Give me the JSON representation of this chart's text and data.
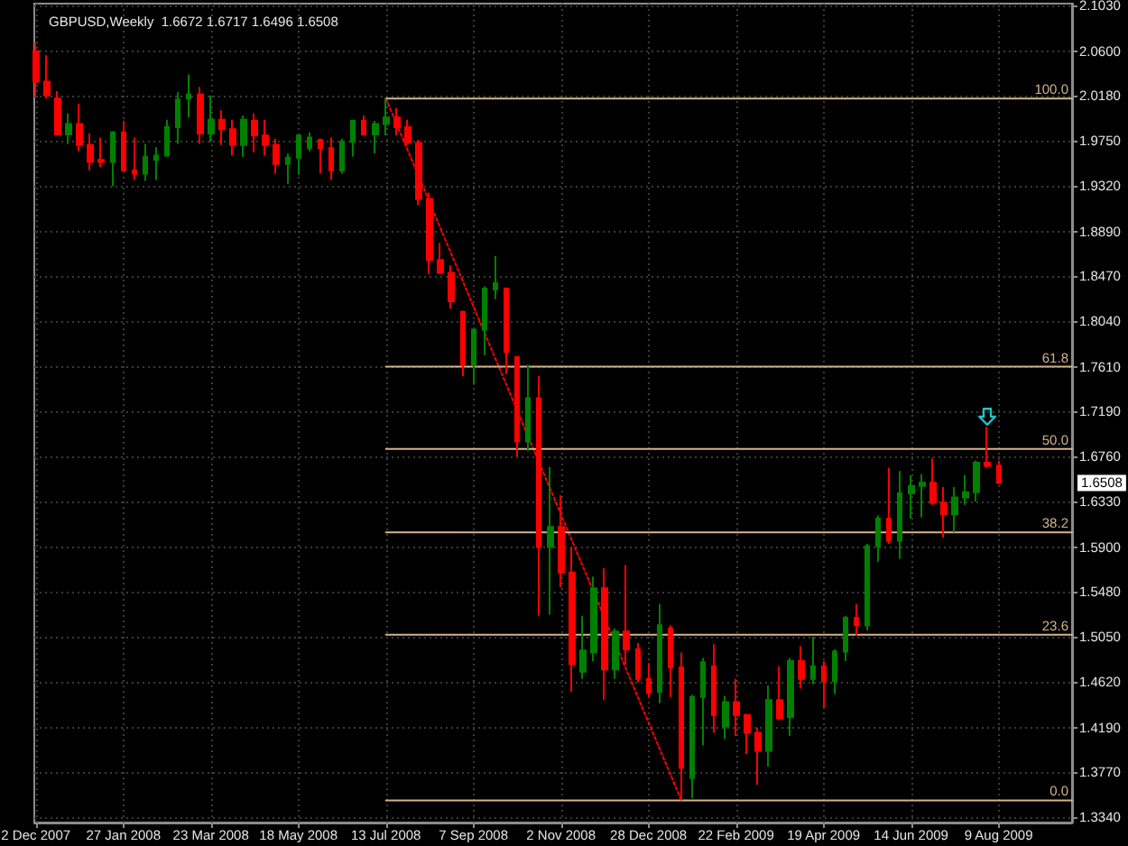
{
  "chart_data": {
    "type": "candlestick",
    "title": "GBPUSD,Weekly  1.6672 1.6717 1.6496 1.6508",
    "x": [
      "2007-12-02",
      "2007-12-09",
      "2007-12-16",
      "2007-12-23",
      "2007-12-30",
      "2008-01-06",
      "2008-01-13",
      "2008-01-20",
      "2008-01-27",
      "2008-02-03",
      "2008-02-10",
      "2008-02-17",
      "2008-02-24",
      "2008-03-02",
      "2008-03-09",
      "2008-03-16",
      "2008-03-23",
      "2008-03-30",
      "2008-04-06",
      "2008-04-13",
      "2008-04-20",
      "2008-04-27",
      "2008-05-04",
      "2008-05-11",
      "2008-05-18",
      "2008-05-25",
      "2008-06-01",
      "2008-06-08",
      "2008-06-15",
      "2008-06-22",
      "2008-06-29",
      "2008-07-06",
      "2008-07-13",
      "2008-07-20",
      "2008-07-27",
      "2008-08-03",
      "2008-08-10",
      "2008-08-17",
      "2008-08-24",
      "2008-08-31",
      "2008-09-07",
      "2008-09-14",
      "2008-09-21",
      "2008-09-28",
      "2008-10-05",
      "2008-10-12",
      "2008-10-19",
      "2008-10-26",
      "2008-11-02",
      "2008-11-09",
      "2008-11-16",
      "2008-11-23",
      "2008-11-30",
      "2008-12-07",
      "2008-12-14",
      "2008-12-21",
      "2008-12-28",
      "2009-01-04",
      "2009-01-11",
      "2009-01-18",
      "2009-01-25",
      "2009-02-01",
      "2009-02-08",
      "2009-02-15",
      "2009-02-22",
      "2009-03-01",
      "2009-03-08",
      "2009-03-15",
      "2009-03-22",
      "2009-03-29",
      "2009-04-05",
      "2009-04-12",
      "2009-04-19",
      "2009-04-26",
      "2009-05-03",
      "2009-05-10",
      "2009-05-17",
      "2009-05-24",
      "2009-05-31",
      "2009-06-07",
      "2009-06-14",
      "2009-06-21",
      "2009-06-28",
      "2009-07-05",
      "2009-07-12",
      "2009-07-19",
      "2009-07-26",
      "2009-08-02",
      "2009-08-09"
    ],
    "xlim": [
      "2007-12-01",
      "2009-09-25"
    ],
    "xticks": [
      {
        "value": "2007-12-02",
        "label": "2 Dec 2007"
      },
      {
        "value": "2008-01-27",
        "label": "27 Jan 2008"
      },
      {
        "value": "2008-03-23",
        "label": "23 Mar 2008"
      },
      {
        "value": "2008-05-18",
        "label": "18 May 2008"
      },
      {
        "value": "2008-07-13",
        "label": "13 Jul 2008"
      },
      {
        "value": "2008-09-07",
        "label": "7 Sep 2008"
      },
      {
        "value": "2008-11-02",
        "label": "2 Nov 2008"
      },
      {
        "value": "2008-12-28",
        "label": "28 Dec 2008"
      },
      {
        "value": "2009-02-22",
        "label": "22 Feb 2009"
      },
      {
        "value": "2009-04-19",
        "label": "19 Apr 2009"
      },
      {
        "value": "2009-06-14",
        "label": "14 Jun 2009"
      },
      {
        "value": "2009-08-09",
        "label": "9 Aug 2009"
      }
    ],
    "ylim": [
      1.329,
      2.105
    ],
    "yticks": [
      {
        "value": 1.334,
        "label": "1.3340"
      },
      {
        "value": 1.377,
        "label": "1.3770"
      },
      {
        "value": 1.419,
        "label": "1.4190"
      },
      {
        "value": 1.462,
        "label": "1.4620"
      },
      {
        "value": 1.505,
        "label": "1.5050"
      },
      {
        "value": 1.548,
        "label": "1.5480"
      },
      {
        "value": 1.59,
        "label": "1.5900"
      },
      {
        "value": 1.633,
        "label": "1.6330"
      },
      {
        "value": 1.676,
        "label": "1.6760"
      },
      {
        "value": 1.719,
        "label": "1.7190"
      },
      {
        "value": 1.761,
        "label": "1.7610"
      },
      {
        "value": 1.804,
        "label": "1.8040"
      },
      {
        "value": 1.847,
        "label": "1.8470"
      },
      {
        "value": 1.889,
        "label": "1.8890"
      },
      {
        "value": 1.932,
        "label": "1.9320"
      },
      {
        "value": 1.975,
        "label": "1.9750"
      },
      {
        "value": 2.018,
        "label": "2.0180"
      },
      {
        "value": 2.06,
        "label": "2.0600"
      },
      {
        "value": 2.103,
        "label": "2.1030"
      }
    ],
    "grid": true,
    "series": [
      {
        "ohlc": [
          [
            2.06,
            2.068,
            2.017,
            2.031
          ],
          [
            2.031,
            2.056,
            2.015,
            2.018
          ],
          [
            2.015,
            2.022,
            1.98,
            1.981
          ],
          [
            1.981,
            2.001,
            1.972,
            1.991
          ],
          [
            1.991,
            2.01,
            1.965,
            1.971
          ],
          [
            1.971,
            1.982,
            1.947,
            1.955
          ],
          [
            1.957,
            1.978,
            1.95,
            1.955
          ],
          [
            1.955,
            1.984,
            1.932,
            1.983
          ],
          [
            1.983,
            1.994,
            1.946,
            1.947
          ],
          [
            1.947,
            1.978,
            1.938,
            1.944
          ],
          [
            1.944,
            1.972,
            1.937,
            1.96
          ],
          [
            1.957,
            1.969,
            1.938,
            1.961
          ],
          [
            1.961,
            1.995,
            1.96,
            1.988
          ],
          [
            1.988,
            2.021,
            1.972,
            2.014
          ],
          [
            2.015,
            2.038,
            1.997,
            2.019
          ],
          [
            2.019,
            2.026,
            1.972,
            1.982
          ],
          [
            1.982,
            2.018,
            1.974,
            1.995
          ],
          [
            1.995,
            2.004,
            1.971,
            1.986
          ],
          [
            1.986,
            1.995,
            1.961,
            1.971
          ],
          [
            1.971,
            1.999,
            1.96,
            1.995
          ],
          [
            1.994,
            2.001,
            1.964,
            1.98
          ],
          [
            1.98,
            1.995,
            1.961,
            1.971
          ],
          [
            1.971,
            1.977,
            1.944,
            1.953
          ],
          [
            1.953,
            1.963,
            1.934,
            1.959
          ],
          [
            1.959,
            1.981,
            1.943,
            1.98
          ],
          [
            1.968,
            1.983,
            1.965,
            1.978
          ],
          [
            1.976,
            1.977,
            1.944,
            1.968
          ],
          [
            1.968,
            1.978,
            1.938,
            1.947
          ],
          [
            1.947,
            1.977,
            1.944,
            1.974
          ],
          [
            1.974,
            1.995,
            1.96,
            1.994
          ],
          [
            1.994,
            1.999,
            1.98,
            1.981
          ],
          [
            1.981,
            1.994,
            1.963,
            1.991
          ],
          [
            1.991,
            2.015,
            1.98,
            1.997
          ],
          [
            1.997,
            2.006,
            1.98,
            1.988
          ],
          [
            1.988,
            1.995,
            1.971,
            1.973
          ],
          [
            1.973,
            1.976,
            1.914,
            1.92
          ],
          [
            1.92,
            1.926,
            1.849,
            1.862
          ],
          [
            1.862,
            1.878,
            1.849,
            1.85
          ],
          [
            1.85,
            1.857,
            1.816,
            1.823
          ],
          [
            1.813,
            1.814,
            1.752,
            1.763
          ],
          [
            1.763,
            1.798,
            1.744,
            1.796
          ],
          [
            1.796,
            1.837,
            1.772,
            1.835
          ],
          [
            1.834,
            1.866,
            1.825,
            1.84
          ],
          [
            1.835,
            1.836,
            1.754,
            1.775
          ],
          [
            1.77,
            1.771,
            1.676,
            1.69
          ],
          [
            1.69,
            1.763,
            1.681,
            1.731
          ],
          [
            1.731,
            1.752,
            1.525,
            1.59
          ],
          [
            1.59,
            1.666,
            1.526,
            1.609
          ],
          [
            1.609,
            1.639,
            1.552,
            1.566
          ],
          [
            1.566,
            1.59,
            1.453,
            1.479
          ],
          [
            1.472,
            1.525,
            1.465,
            1.492
          ],
          [
            1.49,
            1.562,
            1.482,
            1.551
          ],
          [
            1.551,
            1.57,
            1.445,
            1.474
          ],
          [
            1.474,
            1.513,
            1.465,
            1.51
          ],
          [
            1.51,
            1.573,
            1.479,
            1.493
          ],
          [
            1.493,
            1.499,
            1.462,
            1.465
          ],
          [
            1.465,
            1.48,
            1.447,
            1.452
          ],
          [
            1.453,
            1.536,
            1.442,
            1.516
          ],
          [
            1.513,
            1.516,
            1.448,
            1.476
          ],
          [
            1.476,
            1.49,
            1.35,
            1.381
          ],
          [
            1.371,
            1.45,
            1.352,
            1.448
          ],
          [
            1.448,
            1.485,
            1.402,
            1.481
          ],
          [
            1.477,
            1.498,
            1.414,
            1.431
          ],
          [
            1.42,
            1.449,
            1.408,
            1.443
          ],
          [
            1.443,
            1.465,
            1.411,
            1.431
          ],
          [
            1.431,
            1.432,
            1.394,
            1.414
          ],
          [
            1.414,
            1.419,
            1.365,
            1.397
          ],
          [
            1.397,
            1.459,
            1.382,
            1.445
          ],
          [
            1.445,
            1.477,
            1.426,
            1.428
          ],
          [
            1.429,
            1.485,
            1.411,
            1.482
          ],
          [
            1.482,
            1.496,
            1.456,
            1.465
          ],
          [
            1.465,
            1.505,
            1.46,
            1.477
          ],
          [
            1.477,
            1.482,
            1.438,
            1.463
          ],
          [
            1.463,
            1.493,
            1.451,
            1.491
          ],
          [
            1.491,
            1.525,
            1.482,
            1.523
          ],
          [
            1.523,
            1.536,
            1.506,
            1.516
          ],
          [
            1.516,
            1.593,
            1.511,
            1.591
          ],
          [
            1.591,
            1.62,
            1.576,
            1.617
          ],
          [
            1.617,
            1.665,
            1.593,
            1.596
          ],
          [
            1.596,
            1.662,
            1.579,
            1.641
          ],
          [
            1.641,
            1.658,
            1.617,
            1.648
          ],
          [
            1.648,
            1.659,
            1.618,
            1.651
          ],
          [
            1.651,
            1.674,
            1.63,
            1.632
          ],
          [
            1.632,
            1.647,
            1.599,
            1.621
          ],
          [
            1.621,
            1.647,
            1.604,
            1.637
          ],
          [
            1.637,
            1.658,
            1.63,
            1.642
          ],
          [
            1.642,
            1.672,
            1.633,
            1.67
          ],
          [
            1.67,
            1.704,
            1.665,
            1.667
          ],
          [
            1.6672,
            1.6717,
            1.6496,
            1.6508
          ]
        ],
        "colors": [
          "#ff0000",
          "#ff0000",
          "#ff0000",
          "#008000",
          "#ff0000",
          "#ff0000",
          "#ff0000",
          "#008000",
          "#ff0000",
          "#ff0000",
          "#008000",
          "#008000",
          "#008000",
          "#008000",
          "#008000",
          "#ff0000",
          "#008000",
          "#ff0000",
          "#ff0000",
          "#008000",
          "#ff0000",
          "#ff0000",
          "#ff0000",
          "#008000",
          "#008000",
          "#008000",
          "#ff0000",
          "#ff0000",
          "#008000",
          "#008000",
          "#ff0000",
          "#008000",
          "#008000",
          "#ff0000",
          "#ff0000",
          "#ff0000",
          "#ff0000",
          "#ff0000",
          "#ff0000",
          "#ff0000",
          "#008000",
          "#008000",
          "#008000",
          "#ff0000",
          "#ff0000",
          "#008000",
          "#ff0000",
          "#008000",
          "#ff0000",
          "#ff0000",
          "#008000",
          "#008000",
          "#ff0000",
          "#008000",
          "#ff0000",
          "#ff0000",
          "#ff0000",
          "#008000",
          "#ff0000",
          "#ff0000",
          "#008000",
          "#008000",
          "#ff0000",
          "#008000",
          "#ff0000",
          "#ff0000",
          "#ff0000",
          "#008000",
          "#ff0000",
          "#008000",
          "#ff0000",
          "#008000",
          "#ff0000",
          "#008000",
          "#008000",
          "#ff0000",
          "#008000",
          "#008000",
          "#ff0000",
          "#008000",
          "#008000",
          "#008000",
          "#ff0000",
          "#ff0000",
          "#008000",
          "#008000",
          "#008000",
          "#ff0000",
          "#ff0000"
        ]
      },
      {
        "type": "line",
        "x": [
          "2008-07-13",
          "2009-01-18"
        ],
        "values": [
          2.015,
          1.35
        ],
        "color": "#ff0000",
        "line_style": "dotted"
      },
      {
        "type": "line",
        "name": "100.0",
        "x": [
          "2008-07-13",
          "2009-09-25"
        ],
        "values": [
          2.015,
          2.015
        ],
        "color": "#d2b48c"
      },
      {
        "type": "line",
        "name": "61.8",
        "x": [
          "2008-07-13",
          "2009-09-25"
        ],
        "values": [
          1.761,
          1.761
        ],
        "color": "#d2b48c"
      },
      {
        "type": "line",
        "name": "50.0",
        "x": [
          "2008-07-13",
          "2009-09-25"
        ],
        "values": [
          1.683,
          1.683
        ],
        "color": "#d2b48c"
      },
      {
        "type": "line",
        "name": "38.2",
        "x": [
          "2008-07-13",
          "2009-09-25"
        ],
        "values": [
          1.604,
          1.604
        ],
        "color": "#d2b48c"
      },
      {
        "type": "line",
        "name": "23.6",
        "x": [
          "2008-07-13",
          "2009-09-25"
        ],
        "values": [
          1.507,
          1.507
        ],
        "color": "#d2b48c"
      },
      {
        "type": "line",
        "name": "0.0",
        "x": [
          "2008-07-13",
          "2009-09-25"
        ],
        "values": [
          1.35,
          1.35
        ],
        "color": "#d2b48c"
      }
    ],
    "annotations": [
      {
        "text": "1.6508",
        "y": 1.6508
      }
    ]
  }
}
